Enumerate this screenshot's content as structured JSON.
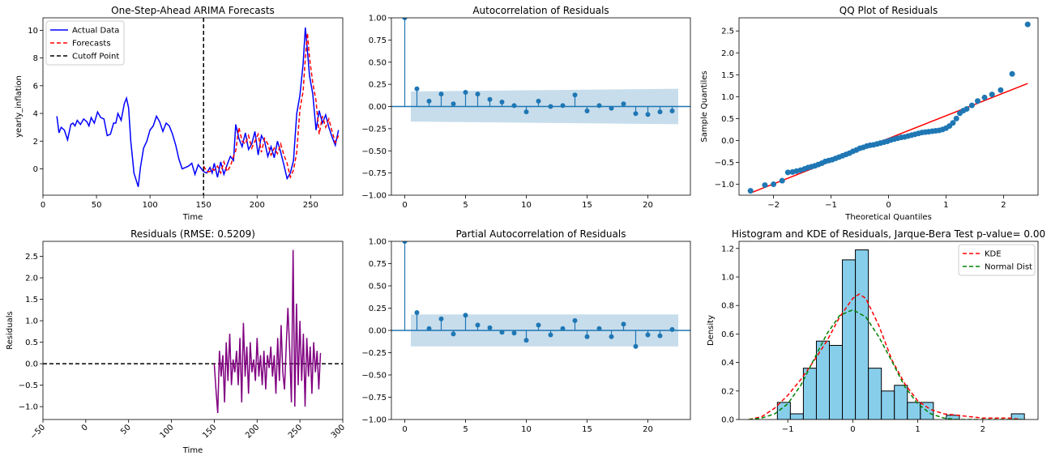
{
  "chart_data": [
    {
      "id": "forecast",
      "type": "line",
      "title": "One-Step-Ahead ARIMA Forecasts",
      "xlabel": "Time",
      "ylabel": "yearly_inflation",
      "xlim": [
        0,
        280
      ],
      "ylim": [
        -1.9,
        10.9
      ],
      "xticks": [
        0,
        50,
        100,
        150,
        200,
        250
      ],
      "yticks": [
        0,
        2,
        4,
        6,
        8,
        10
      ],
      "legend": {
        "position": "top-left",
        "entries": [
          "Actual Data",
          "Forecasts",
          "Cutoff Point"
        ]
      },
      "cutoff_x": 150,
      "series": [
        {
          "name": "Actual Data",
          "color": "#0000ff",
          "style": "solid",
          "x": [
            13,
            15,
            17,
            20,
            23,
            26,
            28,
            30,
            32,
            35,
            38,
            41,
            43,
            45,
            48,
            51,
            54,
            57,
            60,
            63,
            66,
            68,
            70,
            73,
            76,
            78,
            80,
            82,
            84,
            85,
            87,
            89,
            91,
            94,
            97,
            100,
            103,
            106,
            109,
            112,
            115,
            118,
            121,
            124,
            127,
            130,
            133,
            136,
            139,
            142,
            145,
            148,
            150,
            153,
            156,
            158,
            160,
            163,
            166,
            169,
            172,
            175,
            178,
            180,
            183,
            186,
            189,
            192,
            195,
            198,
            201,
            204,
            207,
            210,
            213,
            216,
            219,
            222,
            225,
            228,
            231,
            234,
            237,
            240,
            243,
            245,
            247,
            249,
            252,
            255,
            258,
            261,
            264,
            267,
            270,
            273,
            276
          ],
          "y": [
            3.8,
            2.6,
            3.0,
            2.8,
            2.1,
            3.2,
            3.3,
            3.1,
            3.5,
            3.2,
            3.6,
            3.4,
            3.1,
            3.7,
            3.3,
            4.1,
            3.7,
            3.6,
            2.4,
            2.5,
            3.3,
            3.3,
            4.0,
            3.5,
            4.7,
            5.1,
            4.4,
            2.0,
            0.5,
            -0.3,
            -0.8,
            -1.3,
            0.1,
            1.5,
            2.0,
            2.8,
            3.1,
            3.8,
            3.4,
            2.7,
            3.3,
            3.1,
            2.5,
            1.7,
            0.7,
            0.0,
            0.1,
            0.2,
            0.4,
            -0.4,
            0.3,
            0.0,
            -0.2,
            -0.3,
            0.1,
            -0.3,
            0.4,
            -0.6,
            0.5,
            -0.4,
            0.3,
            0.9,
            0.6,
            3.2,
            2.2,
            1.6,
            2.6,
            1.4,
            1.8,
            2.7,
            1.0,
            2.4,
            2.0,
            0.9,
            1.6,
            0.8,
            2.0,
            1.2,
            0.3,
            -0.7,
            -0.3,
            0.6,
            4.0,
            5.3,
            7.6,
            10.2,
            8.5,
            6.7,
            5.4,
            2.8,
            4.2,
            3.3,
            3.9,
            3.0,
            2.3,
            1.7,
            2.8
          ]
        },
        {
          "name": "Forecasts",
          "color": "#ff0000",
          "style": "dashed",
          "x": [
            150,
            153,
            156,
            158,
            160,
            163,
            166,
            169,
            172,
            175,
            178,
            180,
            183,
            186,
            189,
            192,
            195,
            198,
            201,
            204,
            207,
            210,
            213,
            216,
            219,
            222,
            225,
            228,
            231,
            234,
            237,
            240,
            243,
            245,
            247,
            249,
            252,
            255,
            258,
            261,
            264,
            267,
            270,
            273,
            276
          ],
          "y": [
            0.2,
            -0.2,
            -0.2,
            0.0,
            -0.1,
            0.2,
            -0.3,
            0.5,
            -0.2,
            0.2,
            0.9,
            1.3,
            3.0,
            2.0,
            1.8,
            2.4,
            1.5,
            2.0,
            2.5,
            1.2,
            2.2,
            1.8,
            1.0,
            1.5,
            1.1,
            1.8,
            1.0,
            0.4,
            -0.6,
            -0.1,
            1.2,
            4.3,
            5.6,
            8.0,
            9.8,
            8.0,
            6.2,
            4.9,
            2.5,
            3.8,
            3.0,
            3.6,
            2.7,
            1.9,
            2.4
          ]
        }
      ]
    },
    {
      "id": "acf",
      "type": "stem",
      "title": "Autocorrelation of Residuals",
      "xlim": [
        -1.1,
        23.5
      ],
      "ylim": [
        -1.0,
        1.0
      ],
      "xticks": [
        0,
        5,
        10,
        15,
        20
      ],
      "yticks": [
        -1.0,
        -0.75,
        -0.5,
        -0.25,
        0.0,
        0.25,
        0.5,
        0.75,
        1.0
      ],
      "confidence_band": {
        "x": [
          0.5,
          22.5
        ],
        "upper": [
          0.17,
          0.2
        ],
        "lower": [
          -0.17,
          -0.2
        ]
      },
      "lags": [
        0,
        1,
        2,
        3,
        4,
        5,
        6,
        7,
        8,
        9,
        10,
        11,
        12,
        13,
        14,
        15,
        16,
        17,
        18,
        19,
        20,
        21,
        22
      ],
      "values": [
        1.0,
        0.2,
        0.06,
        0.14,
        0.03,
        0.16,
        0.14,
        0.08,
        0.05,
        0.01,
        -0.06,
        0.06,
        0.0,
        0.01,
        0.13,
        -0.05,
        0.01,
        -0.02,
        0.03,
        -0.08,
        -0.09,
        -0.06,
        -0.05
      ]
    },
    {
      "id": "qq",
      "type": "scatter",
      "title": "QQ Plot of Residuals",
      "xlabel": "Theoretical Quantiles",
      "ylabel": "Sample Quantiles",
      "xlim": [
        -2.6,
        2.6
      ],
      "ylim": [
        -1.25,
        2.8
      ],
      "xticks": [
        -2,
        -1,
        0,
        1,
        2
      ],
      "yticks": [
        -1.0,
        -0.5,
        0.0,
        0.5,
        1.0,
        1.5,
        2.0,
        2.5
      ],
      "points": {
        "x": [
          -2.4,
          -2.15,
          -2.0,
          -1.85,
          -1.75,
          -1.67,
          -1.6,
          -1.53,
          -1.46,
          -1.4,
          -1.34,
          -1.28,
          -1.22,
          -1.16,
          -1.1,
          -1.04,
          -0.98,
          -0.92,
          -0.86,
          -0.8,
          -0.74,
          -0.68,
          -0.62,
          -0.56,
          -0.5,
          -0.44,
          -0.38,
          -0.32,
          -0.26,
          -0.2,
          -0.14,
          -0.08,
          -0.02,
          0.04,
          0.1,
          0.16,
          0.22,
          0.28,
          0.34,
          0.4,
          0.46,
          0.52,
          0.58,
          0.64,
          0.7,
          0.76,
          0.82,
          0.88,
          0.94,
          1.0,
          1.06,
          1.12,
          1.18,
          1.24,
          1.3,
          1.36,
          1.45,
          1.55,
          1.67,
          1.8,
          1.95,
          2.15,
          2.42
        ],
        "y": [
          -1.15,
          -1.02,
          -1.0,
          -0.92,
          -0.73,
          -0.72,
          -0.7,
          -0.68,
          -0.65,
          -0.62,
          -0.6,
          -0.58,
          -0.55,
          -0.52,
          -0.48,
          -0.46,
          -0.44,
          -0.41,
          -0.38,
          -0.35,
          -0.32,
          -0.29,
          -0.25,
          -0.22,
          -0.18,
          -0.16,
          -0.13,
          -0.11,
          -0.1,
          -0.08,
          -0.06,
          -0.04,
          -0.02,
          0.01,
          0.03,
          0.05,
          0.07,
          0.08,
          0.1,
          0.12,
          0.14,
          0.16,
          0.18,
          0.19,
          0.2,
          0.21,
          0.22,
          0.23,
          0.25,
          0.28,
          0.33,
          0.4,
          0.5,
          0.62,
          0.68,
          0.72,
          0.8,
          0.9,
          0.98,
          1.05,
          1.15,
          1.52,
          2.65
        ]
      },
      "reference_line": {
        "x": [
          -2.4,
          2.42
        ],
        "y": [
          -1.2,
          1.3
        ],
        "color": "#ff0000"
      }
    },
    {
      "id": "residuals",
      "type": "line",
      "title": "Residuals (RMSE: 0.5209)",
      "xlabel": "Time",
      "ylabel": "Residuals",
      "xlim": [
        -50,
        300
      ],
      "ylim": [
        -1.3,
        2.85
      ],
      "xticks": [
        -50,
        0,
        50,
        100,
        150,
        200,
        250,
        300
      ],
      "yticks": [
        -1.0,
        -0.5,
        0.0,
        0.5,
        1.0,
        1.5,
        2.0,
        2.5
      ],
      "zero_line": {
        "y": 0,
        "style": "dashed",
        "color": "#000000"
      },
      "series": [
        {
          "name": "",
          "color": "#800080",
          "x": [
            150,
            152,
            154,
            156,
            158,
            160,
            162,
            164,
            166,
            168,
            170,
            172,
            174,
            176,
            178,
            180,
            182,
            184,
            186,
            188,
            190,
            192,
            194,
            196,
            198,
            200,
            202,
            204,
            206,
            208,
            210,
            212,
            214,
            216,
            218,
            220,
            222,
            224,
            226,
            228,
            230,
            232,
            234,
            236,
            238,
            240,
            242,
            244,
            246,
            248,
            250,
            252,
            254,
            256,
            258,
            260,
            262,
            264,
            266,
            268,
            270,
            272,
            274
          ],
          "y": [
            0.0,
            -0.6,
            -1.15,
            0.3,
            -0.3,
            0.2,
            -0.9,
            0.5,
            -0.4,
            0.7,
            -0.5,
            0.1,
            -0.2,
            0.3,
            -0.5,
            0.6,
            -0.9,
            0.95,
            -0.3,
            0.4,
            -0.7,
            0.5,
            -0.2,
            0.1,
            -0.4,
            0.6,
            -0.3,
            0.2,
            -0.5,
            0.3,
            -0.6,
            0.2,
            -0.1,
            0.4,
            -0.3,
            0.2,
            -0.7,
            0.6,
            -0.4,
            0.9,
            -0.2,
            -0.6,
            0.4,
            1.3,
            0.3,
            -0.9,
            2.65,
            -1.0,
            1.4,
            -0.5,
            1.0,
            -0.4,
            0.7,
            -1.0,
            0.6,
            -0.3,
            0.4,
            -0.7,
            0.5,
            -0.2,
            0.3,
            -0.6,
            0.25
          ]
        }
      ]
    },
    {
      "id": "pacf",
      "type": "stem",
      "title": "Partial Autocorrelation of Residuals",
      "xlim": [
        -1.1,
        23.5
      ],
      "ylim": [
        -1.0,
        1.0
      ],
      "xticks": [
        0,
        5,
        10,
        15,
        20
      ],
      "yticks": [
        -1.0,
        -0.75,
        -0.5,
        -0.25,
        0.0,
        0.25,
        0.5,
        0.75,
        1.0
      ],
      "confidence_band": {
        "x": [
          0.5,
          22.5
        ],
        "upper": [
          0.18,
          0.18
        ],
        "lower": [
          -0.18,
          -0.18
        ]
      },
      "lags": [
        0,
        1,
        2,
        3,
        4,
        5,
        6,
        7,
        8,
        9,
        10,
        11,
        12,
        13,
        14,
        15,
        16,
        17,
        18,
        19,
        20,
        21,
        22
      ],
      "values": [
        1.0,
        0.2,
        0.02,
        0.13,
        -0.04,
        0.17,
        0.06,
        0.03,
        -0.02,
        -0.03,
        -0.11,
        0.06,
        -0.05,
        0.02,
        0.11,
        -0.07,
        0.02,
        -0.07,
        0.07,
        -0.18,
        -0.05,
        -0.06,
        0.01
      ]
    },
    {
      "id": "hist",
      "type": "histogram",
      "title": "Histogram and KDE of Residuals, Jarque-Bera Test p-value= 0.00",
      "ylabel": "Density",
      "xlim": [
        -1.75,
        2.85
      ],
      "ylim": [
        0.0,
        1.25
      ],
      "xticks": [
        -1,
        0,
        1,
        2
      ],
      "yticks": [
        0.0,
        0.2,
        0.4,
        0.6,
        0.8,
        1.0,
        1.2
      ],
      "legend": {
        "position": "top-right",
        "entries": [
          "KDE",
          "Normal Dist"
        ]
      },
      "bins": {
        "edges": [
          -1.16,
          -0.96,
          -0.76,
          -0.56,
          -0.36,
          -0.16,
          0.04,
          0.24,
          0.44,
          0.64,
          0.84,
          1.04,
          1.24,
          1.44,
          1.64,
          1.84,
          2.04,
          2.24,
          2.44,
          2.64
        ],
        "heights": [
          0.12,
          0.04,
          0.36,
          0.55,
          0.52,
          1.12,
          1.19,
          0.36,
          0.2,
          0.24,
          0.12,
          0.12,
          0.0,
          0.03,
          0.0,
          0.0,
          0.0,
          0.0,
          0.04
        ],
        "color": "#87ceeb"
      },
      "series": [
        {
          "name": "KDE",
          "color": "#ff0000",
          "style": "dashed",
          "x": [
            -1.6,
            -1.4,
            -1.2,
            -1.0,
            -0.8,
            -0.6,
            -0.4,
            -0.2,
            0.0,
            0.1,
            0.2,
            0.4,
            0.6,
            0.8,
            1.0,
            1.2,
            1.4,
            1.6,
            1.8,
            2.0,
            2.2,
            2.4,
            2.6
          ],
          "y": [
            0.0,
            0.02,
            0.08,
            0.17,
            0.28,
            0.41,
            0.55,
            0.72,
            0.85,
            0.88,
            0.85,
            0.66,
            0.42,
            0.25,
            0.13,
            0.07,
            0.04,
            0.03,
            0.02,
            0.01,
            0.01,
            0.01,
            0.0
          ]
        },
        {
          "name": "Normal Dist",
          "color": "#008000",
          "style": "dashed",
          "x": [
            -1.6,
            -1.4,
            -1.2,
            -1.0,
            -0.8,
            -0.6,
            -0.4,
            -0.2,
            0.0,
            0.2,
            0.4,
            0.6,
            0.8,
            1.0,
            1.2,
            1.4,
            1.6,
            1.8,
            2.0,
            2.2,
            2.4,
            2.6
          ],
          "y": [
            0.0,
            0.01,
            0.04,
            0.11,
            0.24,
            0.42,
            0.6,
            0.73,
            0.77,
            0.72,
            0.58,
            0.41,
            0.23,
            0.11,
            0.04,
            0.01,
            0.0,
            0.0,
            0.0,
            0.0,
            0.0,
            0.0
          ]
        }
      ]
    }
  ]
}
